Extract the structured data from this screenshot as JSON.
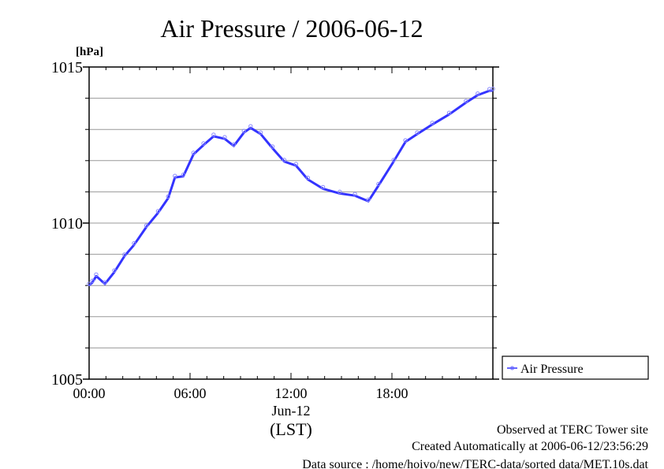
{
  "chart_data": {
    "type": "line",
    "title": "Air Pressure / 2006-06-12",
    "ylabel": "[hPa]",
    "xlabel": "(LST)",
    "date_label": "Jun-12",
    "ylim": [
      1005,
      1015
    ],
    "xlim_hours": [
      0,
      24
    ],
    "yticks": [
      "1005",
      "1010",
      "1015"
    ],
    "ytick_values": [
      1005,
      1010,
      1015
    ],
    "xticks": [
      "00:00",
      "06:00",
      "12:00",
      "18:00"
    ],
    "xtick_hours": [
      0,
      6,
      12,
      18
    ],
    "grid": true,
    "legend_position": "right-bottom",
    "series": [
      {
        "name": "Air Pressure",
        "color": "#3333ff",
        "x_hours": [
          0.0,
          0.2,
          0.42,
          0.94,
          1.5,
          2.1,
          2.67,
          3.4,
          4.1,
          4.7,
          5.1,
          5.6,
          6.2,
          6.8,
          7.4,
          8.06,
          8.6,
          9.2,
          9.6,
          10.2,
          10.9,
          11.6,
          12.3,
          13.0,
          13.9,
          14.9,
          15.8,
          16.6,
          17.2,
          18.1,
          18.8,
          19.5,
          20.4,
          21.4,
          22.4,
          23.1,
          23.8,
          24.0
        ],
        "values": [
          1008.0,
          1008.1,
          1008.3,
          1008.05,
          1008.43,
          1008.94,
          1009.3,
          1009.87,
          1010.33,
          1010.8,
          1011.46,
          1011.5,
          1012.2,
          1012.5,
          1012.78,
          1012.7,
          1012.47,
          1012.9,
          1013.05,
          1012.85,
          1012.4,
          1011.97,
          1011.84,
          1011.4,
          1011.1,
          1010.95,
          1010.88,
          1010.7,
          1011.2,
          1011.97,
          1012.6,
          1012.85,
          1013.16,
          1013.48,
          1013.86,
          1014.1,
          1014.24,
          1014.25
        ]
      }
    ]
  },
  "footer": {
    "line1": "Observed at TERC Tower site",
    "line2": "Created Automatically at 2006-06-12/23:56:29",
    "line3": "Data source : /home/hoivo/new/TERC-data/sorted  data/MET.10s.dat"
  }
}
